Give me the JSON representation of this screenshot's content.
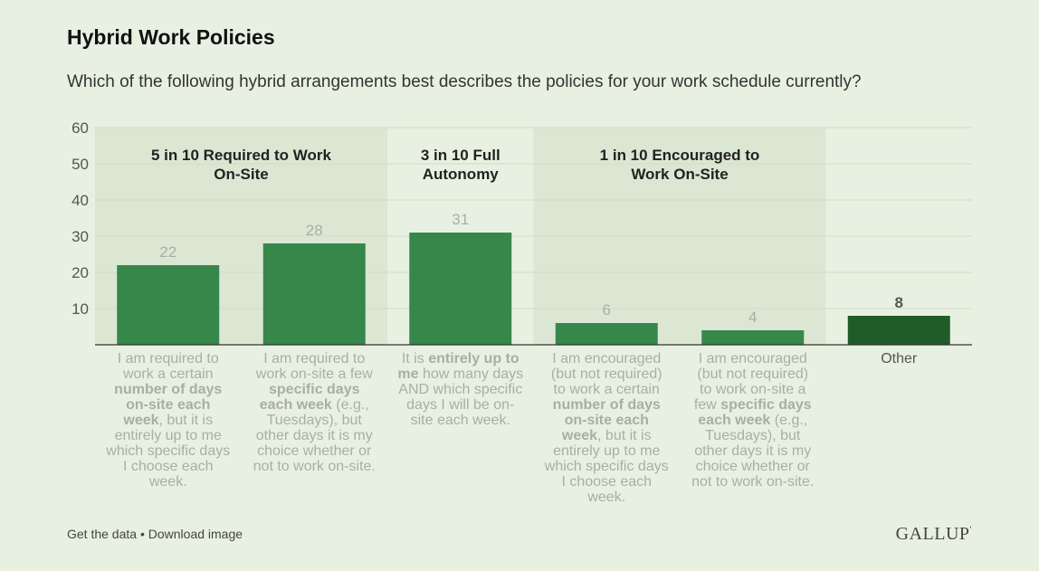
{
  "header": {
    "title": "Hybrid Work Policies",
    "subtitle": "Which of the following hybrid arrangements best describes the policies for your work schedule currently?"
  },
  "footer": {
    "get_data": "Get the data",
    "separator": " • ",
    "download": "Download image",
    "logo": "GALLUP",
    "logo_mark": "'"
  },
  "colors": {
    "bar": "#37874b",
    "bar_other": "#1f5c27",
    "band": "#dbe7d3",
    "value_muted": "#a9aea4",
    "value_strong": "#555555"
  },
  "chart_data": {
    "type": "bar",
    "ylim": [
      0,
      60
    ],
    "yticks": [
      10,
      20,
      30,
      40,
      50,
      60
    ],
    "grid": true,
    "categories": [
      [
        {
          "t": "I am required to work a certain "
        },
        {
          "t": "number of days on-site each week",
          "b": true
        },
        {
          "t": ", but it is entirely up to me which specific days I choose each week."
        }
      ],
      [
        {
          "t": "I am required to work on-site a few "
        },
        {
          "t": "specific days each week",
          "b": true
        },
        {
          "t": " (e.g., Tuesdays), but other days it is my choice whether or not to work on-site."
        }
      ],
      [
        {
          "t": "It is "
        },
        {
          "t": "entirely up to me",
          "b": true
        },
        {
          "t": " how many days AND which specific days I will be on-site each week."
        }
      ],
      [
        {
          "t": "I am encouraged (but not required) to work a certain "
        },
        {
          "t": "number of days on-site each week",
          "b": true
        },
        {
          "t": ", but it is entirely up to me which specific days I choose each week."
        }
      ],
      [
        {
          "t": "I am encouraged (but not required) to work on-site a few "
        },
        {
          "t": "specific days each week",
          "b": true
        },
        {
          "t": " (e.g., Tuesdays), but other days it is my choice whether or not to work on-site."
        }
      ],
      [
        {
          "t": "Other"
        }
      ]
    ],
    "values": [
      22,
      28,
      31,
      6,
      4,
      8
    ],
    "highlight_index": 5,
    "groups": [
      {
        "label_lines": [
          "5 in 10 Required to Work",
          "On-Site"
        ],
        "start": 0,
        "end": 1,
        "shaded": true
      },
      {
        "label_lines": [
          "3 in 10 Full",
          "Autonomy"
        ],
        "start": 2,
        "end": 2,
        "shaded": false
      },
      {
        "label_lines": [
          "1 in 10 Encouraged to",
          "Work On-Site"
        ],
        "start": 3,
        "end": 4,
        "shaded": true
      }
    ]
  }
}
